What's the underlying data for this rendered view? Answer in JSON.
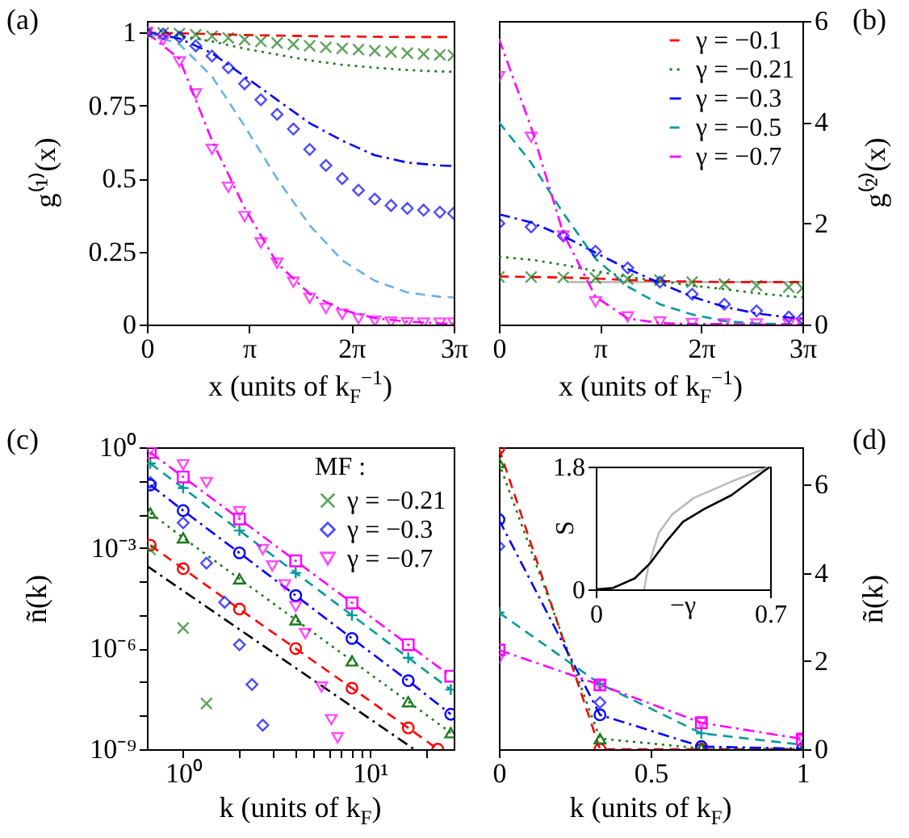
{
  "chart_data": [
    {
      "type": "line",
      "xlabel": "x (units of k$_{F}$$^{−1}$)",
      "ylabel": "g⁽¹⁾(x)",
      "annotations": [
        "(a)"
      ],
      "xlim": [
        0,
        9.4248
      ],
      "xticks": [
        0,
        {
          "value": 3.1416,
          "label": "π"
        },
        {
          "value": 6.2832,
          "label": "2π"
        },
        {
          "value": 9.4248,
          "label": "3π"
        }
      ],
      "ylim": [
        0,
        1.04
      ],
      "yticks": [
        0,
        0.25,
        0.5,
        0.75,
        1
      ],
      "x": [
        0,
        1,
        2,
        3,
        4,
        5,
        6,
        7,
        8,
        9,
        9.42
      ],
      "series": [
        {
          "color": "#ff0000",
          "line_style": "dashed",
          "values": [
            1,
            0.998,
            0.995,
            0.992,
            0.99,
            0.988,
            0.987,
            0.986,
            0.985,
            0.985,
            0.985
          ]
        },
        {
          "color": "#1a7a1a",
          "line_style": "dotted",
          "values": [
            1,
            0.99,
            0.97,
            0.945,
            0.925,
            0.905,
            0.89,
            0.88,
            0.872,
            0.867,
            0.866
          ]
        },
        {
          "color": "#0000ff",
          "line_style": "dashdot",
          "values": [
            1,
            0.98,
            0.93,
            0.85,
            0.77,
            0.69,
            0.63,
            0.58,
            0.555,
            0.545,
            0.543
          ]
        },
        {
          "color": "#66b3e6",
          "line_style": "dashed",
          "values": [
            1,
            0.96,
            0.85,
            0.68,
            0.5,
            0.34,
            0.22,
            0.15,
            0.11,
            0.095,
            0.093
          ]
        },
        {
          "color": "#ff00ff",
          "line_style": "dashdot",
          "values": [
            1,
            0.91,
            0.63,
            0.4,
            0.21,
            0.105,
            0.05,
            0.022,
            0.01,
            0.004,
            0.003
          ]
        },
        {
          "type": "scatter",
          "color": "#1a7a1a",
          "marker": "cross",
          "x": [
            0,
            0.5,
            1,
            1.5,
            2,
            2.5,
            3,
            3.5,
            4,
            4.5,
            5,
            5.5,
            6,
            6.5,
            7,
            7.5,
            8,
            8.5,
            9,
            9.42
          ],
          "values": [
            1,
            0.999,
            0.997,
            0.993,
            0.988,
            0.982,
            0.976,
            0.97,
            0.965,
            0.96,
            0.955,
            0.95,
            0.946,
            0.942,
            0.938,
            0.934,
            0.93,
            0.927,
            0.924,
            0.922
          ]
        },
        {
          "type": "scatter",
          "color": "#0000ff",
          "marker": "diamond",
          "x": [
            0,
            0.5,
            1,
            1.5,
            2,
            2.5,
            3,
            3.5,
            4,
            4.5,
            5,
            5.5,
            6,
            6.5,
            7,
            7.5,
            8,
            8.5,
            9,
            9.42
          ],
          "values": [
            1,
            0.995,
            0.985,
            0.955,
            0.92,
            0.88,
            0.825,
            0.77,
            0.72,
            0.67,
            0.6,
            0.545,
            0.5,
            0.46,
            0.43,
            0.408,
            0.398,
            0.392,
            0.385,
            0.381
          ]
        },
        {
          "type": "scatter",
          "color": "#ff00ff",
          "marker": "triangle-down",
          "x": [
            0,
            0.5,
            1,
            1.5,
            2,
            2.5,
            3,
            3.5,
            4,
            4.5,
            5,
            5.5,
            6,
            6.5,
            7,
            7.5,
            8,
            8.5,
            9,
            9.42
          ],
          "values": [
            1,
            0.975,
            0.9,
            0.79,
            0.6,
            0.47,
            0.37,
            0.28,
            0.21,
            0.145,
            0.09,
            0.055,
            0.035,
            0.02,
            0.012,
            0.008,
            0.006,
            0.005,
            0.005,
            0.005
          ]
        }
      ]
    },
    {
      "type": "line",
      "xlabel": "x (units of k$_{F}$$^{−1}$)",
      "ylabel": "g⁽²⁾(x)",
      "annotations": [
        "(b)"
      ],
      "legend": "top right",
      "xlim": [
        0,
        9.4248
      ],
      "xticks": [
        0,
        {
          "value": 3.1416,
          "label": "π"
        },
        {
          "value": 6.2832,
          "label": "2π"
        },
        {
          "value": 9.4248,
          "label": "3π"
        }
      ],
      "ylim": [
        0,
        6
      ],
      "yticks": [
        0,
        2,
        4,
        6
      ],
      "x": [
        0,
        1,
        2,
        3,
        4,
        5,
        6,
        7,
        8,
        9,
        9.42
      ],
      "series": [
        {
          "color": "#bbbbbb",
          "x": [
            2.2,
            9.42
          ],
          "values": [
            0.84,
            0.84
          ]
        },
        {
          "name": "γ = −0.1",
          "color": "#ff0000",
          "line_style": "dashed",
          "values": [
            0.95,
            0.94,
            0.93,
            0.91,
            0.88,
            0.86,
            0.85,
            0.84,
            0.84,
            0.84,
            0.84
          ]
        },
        {
          "name": "γ = −0.21",
          "color": "#1a7a1a",
          "line_style": "dotted",
          "values": [
            1.34,
            1.28,
            1.18,
            1.06,
            0.94,
            0.86,
            0.77,
            0.7,
            0.62,
            0.56,
            0.54
          ]
        },
        {
          "name": "γ = −0.3",
          "color": "#0000ff",
          "line_style": "dashdot",
          "values": [
            2.18,
            2.02,
            1.75,
            1.42,
            1.1,
            0.82,
            0.55,
            0.35,
            0.22,
            0.14,
            0.12
          ]
        },
        {
          "name": "γ = −0.5",
          "color": "#009999",
          "line_style": "dashed",
          "values": [
            4,
            3.2,
            2.2,
            1.3,
            0.75,
            0.4,
            0.2,
            0.07,
            0.02,
            0.01,
            0
          ]
        },
        {
          "name": "γ = −0.7",
          "color": "#ff00ff",
          "line_style": "dashdot",
          "values": [
            5.65,
            3.9,
            1.8,
            0.55,
            0.12,
            0.03,
            0.01,
            0.01,
            0,
            0,
            0
          ]
        },
        {
          "type": "scatter",
          "color": "#1a7a1a",
          "marker": "cross",
          "values": [
            0.94,
            0.94,
            0.93,
            0.92,
            0.9,
            0.88,
            0.84,
            0.8,
            0.77,
            0.74,
            0.72
          ]
        },
        {
          "type": "scatter",
          "color": "#0000ff",
          "marker": "diamond",
          "values": [
            2,
            1.93,
            1.75,
            1.45,
            1.12,
            0.84,
            0.6,
            0.4,
            0.27,
            0.15,
            0.12
          ]
        },
        {
          "type": "scatter",
          "color": "#ff00ff",
          "marker": "triangle-down",
          "values": [
            4.9,
            3.7,
            1.75,
            0.45,
            0.15,
            0.05,
            0.02,
            0.01,
            0.01,
            0.01,
            0.01
          ]
        }
      ]
    },
    {
      "type": "line",
      "log": "xy",
      "xlabel": "k (units of k$_{F}$)",
      "ylabel": "ñ(k)",
      "annotations": [
        "(c)"
      ],
      "legend": "top right",
      "legend_title": "MF :",
      "xlim": [
        0.64,
        28
      ],
      "xticks": [
        {
          "value": 1,
          "label": "10⁰"
        },
        {
          "value": 2,
          "label": null
        },
        {
          "value": 3,
          "label": null
        },
        {
          "value": 4,
          "label": null
        },
        {
          "value": 5,
          "label": null
        },
        {
          "value": 6,
          "label": null
        },
        {
          "value": 7,
          "label": null
        },
        {
          "value": 8,
          "label": null
        },
        {
          "value": 9,
          "label": null
        },
        {
          "value": 10,
          "label": "10¹"
        },
        {
          "value": 20,
          "label": null
        }
      ],
      "ylim": [
        1e-09,
        1
      ],
      "yticks": [
        {
          "value": 1,
          "label": "10⁰"
        },
        {
          "value": 0.1,
          "label": null
        },
        {
          "value": 0.01,
          "label": null
        },
        {
          "value": 0.001,
          "label": "10⁻³"
        },
        {
          "value": 0.0001,
          "label": null
        },
        {
          "value": 1e-05,
          "label": null
        },
        {
          "value": 1e-06,
          "label": "10⁻⁶"
        },
        {
          "value": 1e-07,
          "label": null
        },
        {
          "value": 1e-08,
          "label": null
        },
        {
          "value": 1e-09,
          "label": "10⁻⁹"
        }
      ],
      "x": [
        0.667,
        1,
        2,
        4,
        8,
        16,
        27
      ],
      "series": [
        {
          "color": "#ff0000",
          "line_style": "dashed",
          "marker": "circle",
          "x": [
            0.667,
            1,
            2,
            4,
            8,
            16,
            23
          ],
          "values": [
            0.0012,
            0.00024,
            1.5e-05,
            1e-06,
            6.6e-08,
            4.3e-09,
            1e-09
          ]
        },
        {
          "color": "#1a7a1a",
          "line_style": "dotted",
          "marker": "triangle",
          "values": [
            0.011,
            0.002,
            0.00012,
            7.2e-06,
            4.3e-07,
            2.6e-08,
            3.1e-09
          ]
        },
        {
          "color": "#0000ff",
          "line_style": "dashdot",
          "marker": "circle",
          "values": [
            0.075,
            0.013,
            0.00071,
            3.8e-05,
            2e-06,
            1.1e-07,
            1.1e-08
          ]
        },
        {
          "color": "#009999",
          "line_style": "dashed",
          "marker": "plus",
          "values": [
            0.33,
            0.061,
            0.0033,
            0.00018,
            9.8e-06,
            5.3e-07,
            6e-08
          ]
        },
        {
          "color": "#ff00ff",
          "line_style": "dashdot",
          "marker": "square",
          "values": [
            0.7,
            0.13,
            0.0073,
            0.00041,
            2.3e-05,
            1.3e-06,
            1.5e-07
          ]
        },
        {
          "color": "#000000",
          "line_style": "dashdot",
          "x": [
            0.64,
            17.2
          ],
          "values": [
            0.00029,
            1e-09
          ]
        },
        {
          "type": "scatter",
          "name": "γ = −0.21",
          "color": "#1a7a1a",
          "marker": "cross",
          "x": [
            0.667,
            1,
            1.333
          ],
          "values": [
            0.00089,
            4.1e-06,
            2.3e-08
          ]
        },
        {
          "type": "scatter",
          "name": "γ = −0.3",
          "color": "#0000ff",
          "marker": "diamond",
          "x": [
            0.667,
            1,
            1.333,
            1.667,
            2,
            2.333,
            2.667
          ],
          "values": [
            0.089,
            0.0056,
            0.00035,
            2.4e-05,
            1.3e-06,
            8.5e-08,
            5.2e-09
          ]
        },
        {
          "type": "scatter",
          "name": "γ = −0.7",
          "color": "#ff00ff",
          "marker": "triangle-down",
          "x": [
            0.667,
            1,
            1.333,
            2,
            2.667,
            3,
            3.5,
            4,
            4.5,
            5.5,
            6.2,
            6.7
          ],
          "values": [
            0.83,
            0.3,
            0.089,
            0.012,
            0.00089,
            0.00029,
            7.9e-05,
            1.8e-05,
            2.8e-06,
            7.1e-08,
            7.6e-09,
            2.2e-09
          ]
        }
      ]
    },
    {
      "type": "line",
      "xlabel": "k (units of k$_{F}$)",
      "ylabel": "ñ(k)",
      "annotations": [
        "(d)"
      ],
      "xlim": [
        0,
        1
      ],
      "xticks": [
        0,
        0.5,
        1
      ],
      "ylim": [
        0,
        6.85
      ],
      "yticks": [
        0,
        2,
        4,
        6
      ],
      "x": [
        0,
        0.333,
        0.667,
        1
      ],
      "series": [
        {
          "color": "#ff0000",
          "line_style": "dashed",
          "marker": "circle",
          "values": [
            6.83,
            0,
            0,
            0
          ]
        },
        {
          "color": "#1a7a1a",
          "line_style": "dotted",
          "marker": "triangle",
          "values": [
            6.5,
            0.24,
            0.02,
            0
          ]
        },
        {
          "color": "#0000ff",
          "line_style": "dashdot",
          "marker": "circle",
          "values": [
            5.21,
            0.78,
            0.06,
            0.01
          ]
        },
        {
          "color": "#009999",
          "line_style": "dashed",
          "marker": "plus",
          "values": [
            3.1,
            1.48,
            0.36,
            0.1
          ]
        },
        {
          "color": "#ff00ff",
          "line_style": "dashdot",
          "marker": "square",
          "values": [
            2.25,
            1.46,
            0.6,
            0.23
          ]
        },
        {
          "type": "scatter",
          "color": "#0000ff",
          "marker": "diamond",
          "values": [
            4.6,
            1.06,
            null,
            null
          ]
        },
        {
          "type": "scatter",
          "color": "#ff00ff",
          "marker": "triangle-down",
          "values": [
            2.05,
            1.45,
            0.6,
            0.2
          ]
        }
      ]
    },
    {
      "type": "line",
      "xlabel": "−γ",
      "ylabel": "S",
      "xlim": [
        0,
        0.7
      ],
      "xticks": [
        0,
        0.7
      ],
      "ylim": [
        0,
        1.8
      ],
      "yticks": [
        0,
        1.8
      ],
      "series": [
        {
          "color": "#bbbbbb",
          "x": [
            0.194,
            0.21,
            0.253,
            0.307,
            0.393,
            0.544,
            0.7
          ],
          "values": [
            0,
            0.32,
            0.83,
            1.1,
            1.34,
            1.58,
            1.8
          ]
        },
        {
          "color": "#000000",
          "x": [
            0,
            0.069,
            0.156,
            0.22,
            0.285,
            0.35,
            0.436,
            0.544,
            0.7
          ],
          "values": [
            0,
            0.02,
            0.16,
            0.39,
            0.71,
            0.99,
            1.18,
            1.38,
            1.8
          ]
        }
      ]
    }
  ]
}
